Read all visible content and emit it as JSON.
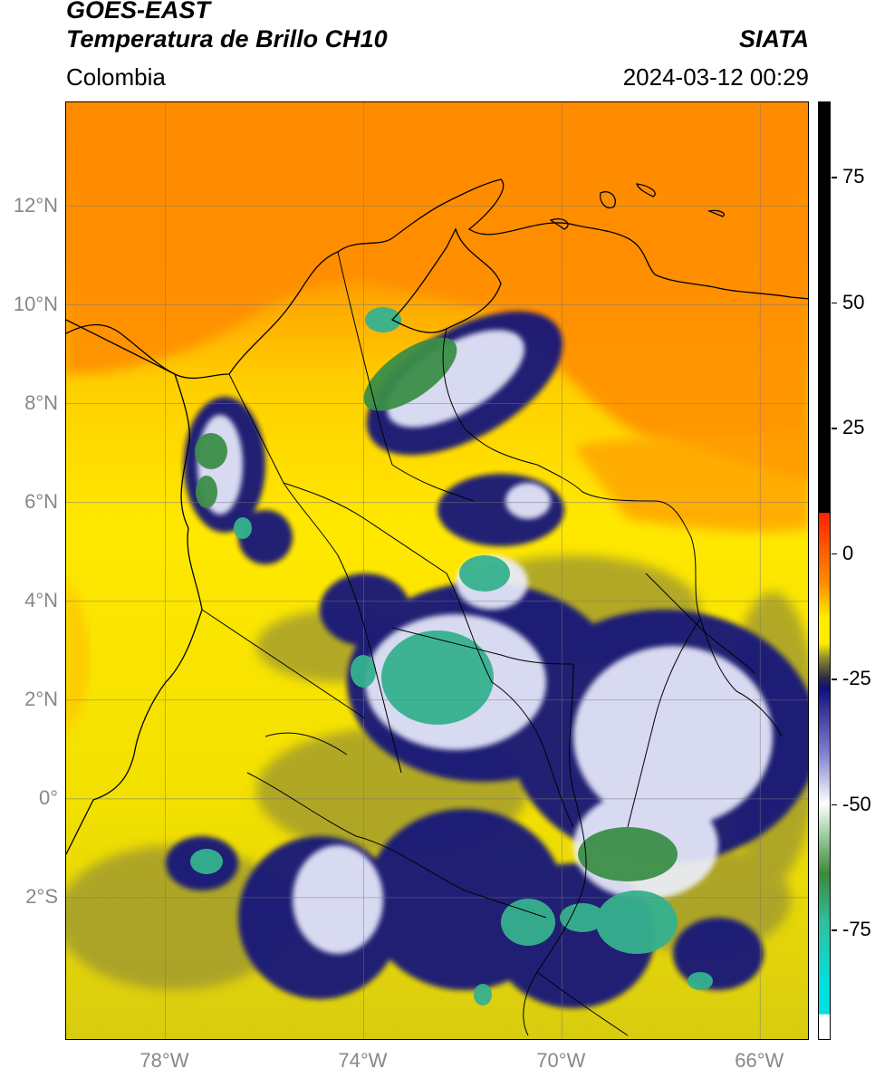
{
  "header": {
    "satellite": "GOES-EAST",
    "product": "Temperatura de Brillo CH10",
    "organization": "SIATA",
    "region": "Colombia",
    "datetime": "2024-03-12 00:29"
  },
  "map": {
    "lon_range": [
      -80,
      -65
    ],
    "lat_range": [
      -4.9,
      14.1
    ],
    "grid": true,
    "lat_ticks": [
      {
        "value": 12,
        "label": "12°N"
      },
      {
        "value": 10,
        "label": "10°N"
      },
      {
        "value": 8,
        "label": "8°N"
      },
      {
        "value": 6,
        "label": "6°N"
      },
      {
        "value": 4,
        "label": "4°N"
      },
      {
        "value": 2,
        "label": "2°N"
      },
      {
        "value": 0,
        "label": "0°"
      },
      {
        "value": -2,
        "label": "2°S"
      }
    ],
    "lon_ticks": [
      {
        "value": -78,
        "label": "78°W"
      },
      {
        "value": -74,
        "label": "74°W"
      },
      {
        "value": -70,
        "label": "70°W"
      },
      {
        "value": -66,
        "label": "66°W"
      }
    ]
  },
  "colorbar": {
    "range": [
      -97,
      90
    ],
    "ticks": [
      {
        "value": 75,
        "label": "75"
      },
      {
        "value": 50,
        "label": "50"
      },
      {
        "value": 25,
        "label": "25"
      },
      {
        "value": 0,
        "label": "0"
      },
      {
        "value": -25,
        "label": "-25"
      },
      {
        "value": -50,
        "label": "-50"
      },
      {
        "value": -75,
        "label": "-75"
      }
    ],
    "colors": {
      "black": "#000000",
      "red": "#ff2200",
      "orange": "#ff8c00",
      "yellow": "#ffee00",
      "olive": "#8a8a30",
      "navy": "#101080",
      "white": "#ffffff",
      "green": "#3a8a3a",
      "teal": "#30c0a0",
      "cyan": "#00e0e0"
    }
  }
}
